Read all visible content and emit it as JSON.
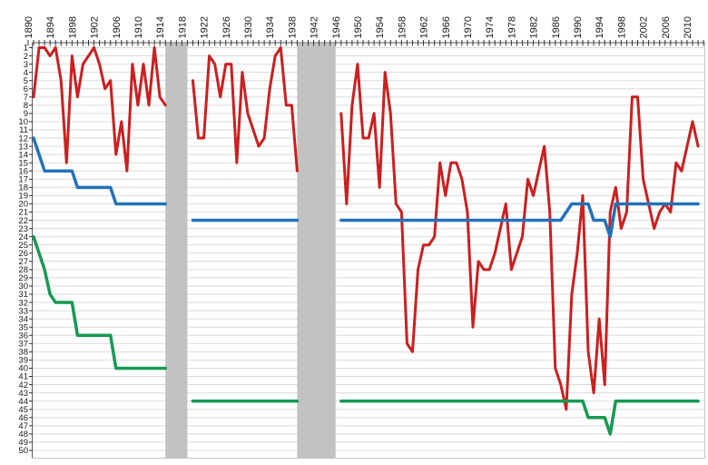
{
  "chart_data": {
    "type": "line",
    "title": "",
    "xlabel": "",
    "ylabel": "",
    "x_axis": {
      "tick_labels": [
        1890,
        1894,
        1898,
        1902,
        1906,
        1910,
        1914,
        1918,
        1922,
        1926,
        1930,
        1934,
        1938,
        1942,
        1946,
        1950,
        1954,
        1958,
        1962,
        1966,
        1970,
        1974,
        1978,
        1982,
        1986,
        1990,
        1994,
        1998,
        2002,
        2006,
        2010
      ],
      "minor_tick_from": 1890,
      "minor_tick_to": 2013,
      "minor_tick_step": 1
    },
    "y_axis": {
      "min": 1,
      "max": 50,
      "tick_step": 1,
      "inverted": true
    },
    "grid": "horizontal",
    "legend": "none",
    "war_gap_bands": [
      {
        "from_year": 1915,
        "to_year": 1919
      },
      {
        "from_year": 1939,
        "to_year": 1946
      }
    ],
    "series": [
      {
        "id": "series-red",
        "color": "#cc1f1f",
        "width": 3,
        "segments": [
          [
            [
              1891,
              7
            ],
            [
              1892,
              1
            ],
            [
              1893,
              1
            ],
            [
              1894,
              2
            ],
            [
              1895,
              1
            ],
            [
              1896,
              5
            ],
            [
              1897,
              15
            ],
            [
              1898,
              2
            ],
            [
              1899,
              7
            ],
            [
              1900,
              3
            ],
            [
              1901,
              2
            ],
            [
              1902,
              1
            ],
            [
              1903,
              3
            ],
            [
              1904,
              6
            ],
            [
              1905,
              5
            ],
            [
              1906,
              14
            ],
            [
              1907,
              10
            ],
            [
              1908,
              16
            ],
            [
              1909,
              3
            ],
            [
              1910,
              8
            ],
            [
              1911,
              3
            ],
            [
              1912,
              8
            ],
            [
              1913,
              1
            ],
            [
              1914,
              7
            ],
            [
              1915,
              8
            ]
          ],
          [
            [
              1920,
              5
            ],
            [
              1921,
              12
            ],
            [
              1922,
              12
            ],
            [
              1923,
              2
            ],
            [
              1924,
              3
            ],
            [
              1925,
              7
            ],
            [
              1926,
              3
            ],
            [
              1927,
              3
            ],
            [
              1928,
              15
            ],
            [
              1929,
              4
            ],
            [
              1930,
              9
            ],
            [
              1931,
              11
            ],
            [
              1932,
              13
            ],
            [
              1933,
              12
            ],
            [
              1934,
              6
            ],
            [
              1935,
              2
            ],
            [
              1936,
              1
            ],
            [
              1937,
              8
            ],
            [
              1938,
              8
            ],
            [
              1939,
              16
            ]
          ],
          [
            [
              1947,
              9
            ],
            [
              1948,
              20
            ],
            [
              1949,
              8
            ],
            [
              1950,
              3
            ],
            [
              1951,
              12
            ],
            [
              1952,
              12
            ],
            [
              1953,
              9
            ],
            [
              1954,
              18
            ],
            [
              1955,
              4
            ],
            [
              1956,
              9
            ],
            [
              1957,
              20
            ],
            [
              1958,
              21
            ],
            [
              1959,
              37
            ],
            [
              1960,
              38
            ],
            [
              1961,
              28
            ],
            [
              1962,
              25
            ],
            [
              1963,
              25
            ],
            [
              1964,
              24
            ],
            [
              1965,
              15
            ],
            [
              1966,
              19
            ],
            [
              1967,
              15
            ],
            [
              1968,
              15
            ],
            [
              1969,
              17
            ],
            [
              1970,
              21
            ],
            [
              1971,
              35
            ],
            [
              1972,
              27
            ],
            [
              1973,
              28
            ],
            [
              1974,
              28
            ],
            [
              1975,
              26
            ],
            [
              1976,
              23
            ],
            [
              1977,
              20
            ],
            [
              1978,
              28
            ],
            [
              1979,
              26
            ],
            [
              1980,
              24
            ],
            [
              1981,
              17
            ],
            [
              1982,
              19
            ],
            [
              1983,
              16
            ],
            [
              1984,
              13
            ],
            [
              1985,
              21
            ],
            [
              1986,
              40
            ],
            [
              1987,
              42
            ],
            [
              1988,
              45
            ],
            [
              1989,
              31
            ],
            [
              1990,
              26
            ],
            [
              1991,
              19
            ],
            [
              1992,
              38
            ],
            [
              1993,
              43
            ],
            [
              1994,
              34
            ],
            [
              1995,
              42
            ],
            [
              1996,
              21
            ],
            [
              1997,
              18
            ],
            [
              1998,
              23
            ],
            [
              1999,
              21
            ],
            [
              2000,
              7
            ],
            [
              2001,
              7
            ],
            [
              2002,
              17
            ],
            [
              2003,
              20
            ],
            [
              2004,
              23
            ],
            [
              2005,
              21
            ],
            [
              2006,
              20
            ],
            [
              2007,
              21
            ],
            [
              2008,
              15
            ],
            [
              2009,
              16
            ],
            [
              2010,
              13
            ],
            [
              2011,
              10
            ],
            [
              2012,
              13
            ]
          ]
        ]
      },
      {
        "id": "series-blue",
        "color": "#2272b9",
        "width": 3.5,
        "segments": [
          [
            [
              1891,
              12
            ],
            [
              1892,
              14
            ],
            [
              1893,
              16
            ],
            [
              1898,
              16
            ],
            [
              1899,
              18
            ],
            [
              1905,
              18
            ],
            [
              1906,
              20
            ],
            [
              1915,
              20
            ]
          ],
          [
            [
              1920,
              22
            ],
            [
              1939,
              22
            ]
          ],
          [
            [
              1947,
              22
            ],
            [
              1987,
              22
            ],
            [
              1988,
              21
            ],
            [
              1989,
              20
            ],
            [
              1992,
              20
            ],
            [
              1993,
              22
            ],
            [
              1995,
              22
            ],
            [
              1996,
              24
            ],
            [
              1997,
              20
            ],
            [
              2012,
              20
            ]
          ]
        ]
      },
      {
        "id": "series-green",
        "color": "#169a52",
        "width": 3.5,
        "segments": [
          [
            [
              1891,
              24
            ],
            [
              1892,
              26
            ],
            [
              1893,
              28
            ],
            [
              1894,
              31
            ],
            [
              1895,
              32
            ],
            [
              1898,
              32
            ],
            [
              1899,
              36
            ],
            [
              1905,
              36
            ],
            [
              1906,
              40
            ],
            [
              1915,
              40
            ]
          ],
          [
            [
              1920,
              44
            ],
            [
              1939,
              44
            ]
          ],
          [
            [
              1947,
              44
            ],
            [
              1991,
              44
            ],
            [
              1992,
              46
            ],
            [
              1995,
              46
            ],
            [
              1996,
              48
            ],
            [
              1997,
              44
            ],
            [
              2012,
              44
            ]
          ]
        ]
      }
    ],
    "colors": {
      "background": "#ffffff",
      "gridline": "#dbdbdb",
      "war_band": "#c2c2c2",
      "axis_dark": "#595959",
      "axis_light": "#c4c4c4",
      "tick": "#333333",
      "label": "#1a1a1a"
    }
  }
}
